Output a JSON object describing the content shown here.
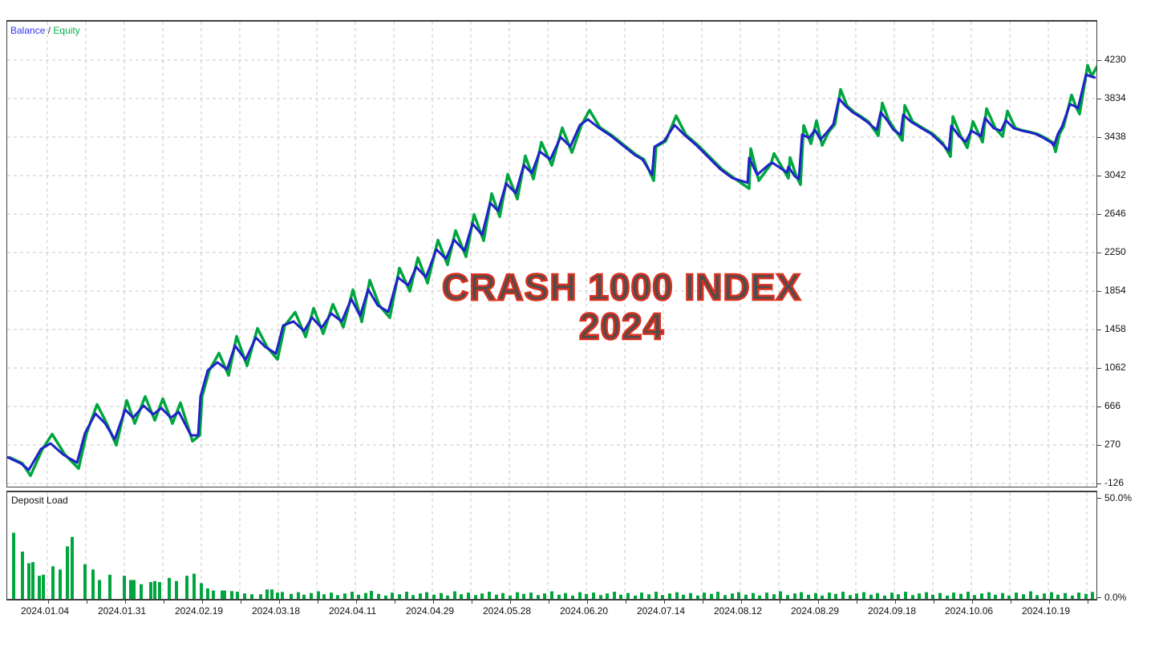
{
  "legend": {
    "balance_label": "Balance",
    "separator": "/",
    "equity_label": "Equity",
    "balance_text_color": "#3434f0",
    "separator_color": "#333333",
    "equity_text_color": "#00b44b"
  },
  "watermark": {
    "line1": "CRASH 1000 INDEX",
    "line2": "2024",
    "fill_color": "#4d4d4d",
    "outline_color": "#d9301f"
  },
  "deposit_panel": {
    "label": "Deposit Load",
    "max_label": "50.0%",
    "min_label": "0.0%"
  },
  "colors": {
    "balance_line": "#2121c8",
    "equity_line": "#00a53e",
    "deposit_bar": "#00a53e",
    "grid": "#c9c9c9",
    "frame": "#3f3f3f",
    "axis_text": "#111111"
  },
  "chart_data": {
    "type": "line",
    "title": "CRASH 1000 INDEX 2024",
    "legend_position": "top-left",
    "grid": true,
    "y_ticks": [
      4230,
      3834,
      3438,
      3042,
      2646,
      2250,
      1854,
      1458,
      1062,
      666,
      270,
      -126
    ],
    "ylim": [
      -126,
      4230
    ],
    "x_ticks": [
      "2024.01.04",
      "2024.01.31",
      "2024.02.19",
      "2024.03.18",
      "2024.04.11",
      "2024.04.29",
      "2024.05.28",
      "2024.06.20",
      "2024.07.14",
      "2024.08.12",
      "2024.08.29",
      "2024.09.18",
      "2024.10.06",
      "2024.10.19"
    ],
    "series": [
      {
        "name": "Balance",
        "points": [
          [
            0,
            146
          ],
          [
            17,
            80
          ],
          [
            27,
            14
          ],
          [
            42,
            228
          ],
          [
            54,
            286
          ],
          [
            70,
            170
          ],
          [
            87,
            88
          ],
          [
            97,
            393
          ],
          [
            110,
            592
          ],
          [
            122,
            493
          ],
          [
            134,
            328
          ],
          [
            147,
            633
          ],
          [
            157,
            551
          ],
          [
            170,
            674
          ],
          [
            182,
            584
          ],
          [
            192,
            650
          ],
          [
            204,
            551
          ],
          [
            214,
            609
          ],
          [
            229,
            369
          ],
          [
            238,
            369
          ],
          [
            241,
            770
          ],
          [
            250,
            1037
          ],
          [
            262,
            1120
          ],
          [
            274,
            1046
          ],
          [
            284,
            1293
          ],
          [
            297,
            1145
          ],
          [
            310,
            1375
          ],
          [
            322,
            1277
          ],
          [
            335,
            1211
          ],
          [
            344,
            1499
          ],
          [
            357,
            1541
          ],
          [
            370,
            1442
          ],
          [
            380,
            1582
          ],
          [
            392,
            1475
          ],
          [
            404,
            1623
          ],
          [
            417,
            1541
          ],
          [
            429,
            1772
          ],
          [
            440,
            1598
          ],
          [
            450,
            1871
          ],
          [
            462,
            1706
          ],
          [
            475,
            1640
          ],
          [
            487,
            1995
          ],
          [
            500,
            1912
          ],
          [
            510,
            2102
          ],
          [
            522,
            1995
          ],
          [
            535,
            2283
          ],
          [
            547,
            2184
          ],
          [
            557,
            2382
          ],
          [
            570,
            2267
          ],
          [
            580,
            2547
          ],
          [
            592,
            2432
          ],
          [
            602,
            2762
          ],
          [
            612,
            2679
          ],
          [
            622,
            2960
          ],
          [
            634,
            2861
          ],
          [
            644,
            3150
          ],
          [
            654,
            3067
          ],
          [
            664,
            3290
          ],
          [
            677,
            3207
          ],
          [
            690,
            3438
          ],
          [
            702,
            3339
          ],
          [
            714,
            3562
          ],
          [
            724,
            3620
          ],
          [
            737,
            3537
          ],
          [
            752,
            3455
          ],
          [
            767,
            3356
          ],
          [
            782,
            3257
          ],
          [
            792,
            3207
          ],
          [
            804,
            3050
          ],
          [
            807,
            3339
          ],
          [
            819,
            3397
          ],
          [
            832,
            3562
          ],
          [
            844,
            3463
          ],
          [
            859,
            3356
          ],
          [
            874,
            3232
          ],
          [
            889,
            3108
          ],
          [
            904,
            3017
          ],
          [
            923,
            2968
          ],
          [
            925,
            3224
          ],
          [
            935,
            3050
          ],
          [
            950,
            3158
          ],
          [
            954,
            3174
          ],
          [
            972,
            3075
          ],
          [
            974,
            3133
          ],
          [
            982,
            3034
          ],
          [
            987,
            3009
          ],
          [
            991,
            3463
          ],
          [
            1000,
            3430
          ],
          [
            1007,
            3512
          ],
          [
            1014,
            3413
          ],
          [
            1022,
            3488
          ],
          [
            1030,
            3570
          ],
          [
            1037,
            3834
          ],
          [
            1045,
            3760
          ],
          [
            1054,
            3694
          ],
          [
            1062,
            3653
          ],
          [
            1072,
            3595
          ],
          [
            1084,
            3512
          ],
          [
            1089,
            3694
          ],
          [
            1097,
            3612
          ],
          [
            1105,
            3512
          ],
          [
            1114,
            3463
          ],
          [
            1117,
            3669
          ],
          [
            1127,
            3595
          ],
          [
            1140,
            3529
          ],
          [
            1152,
            3471
          ],
          [
            1164,
            3380
          ],
          [
            1174,
            3298
          ],
          [
            1177,
            3554
          ],
          [
            1187,
            3446
          ],
          [
            1195,
            3389
          ],
          [
            1202,
            3504
          ],
          [
            1214,
            3446
          ],
          [
            1219,
            3636
          ],
          [
            1230,
            3529
          ],
          [
            1239,
            3504
          ],
          [
            1245,
            3611
          ],
          [
            1255,
            3529
          ],
          [
            1265,
            3504
          ],
          [
            1274,
            3488
          ],
          [
            1282,
            3471
          ],
          [
            1292,
            3430
          ],
          [
            1302,
            3380
          ],
          [
            1305,
            3347
          ],
          [
            1310,
            3471
          ],
          [
            1315,
            3545
          ],
          [
            1325,
            3776
          ],
          [
            1330,
            3760
          ],
          [
            1335,
            3735
          ],
          [
            1345,
            4082
          ],
          [
            1350,
            4065
          ],
          [
            1357,
            4048
          ]
        ]
      },
      {
        "name": "Equity",
        "derivation": "balance with open-position float spikes at local extremes",
        "spike_up": 95,
        "spike_down": 60,
        "end_spike": 120
      }
    ],
    "deposit_load": {
      "type": "bar",
      "ylabel": "Deposit Load",
      "unit": "%",
      "ylim": [
        0,
        50
      ],
      "bars": [
        [
          6,
          31.5
        ],
        [
          17,
          22.5
        ],
        [
          25,
          17
        ],
        [
          30,
          17.5
        ],
        [
          38,
          11
        ],
        [
          43,
          11.5
        ],
        [
          55,
          15.5
        ],
        [
          64,
          14
        ],
        [
          73,
          25
        ],
        [
          79,
          29.5
        ],
        [
          95,
          16.5
        ],
        [
          105,
          14
        ],
        [
          113,
          9
        ],
        [
          126,
          11.5
        ],
        [
          144,
          11
        ],
        [
          152,
          9
        ],
        [
          156,
          9
        ],
        [
          165,
          7
        ],
        [
          177,
          8
        ],
        [
          182,
          8.5
        ],
        [
          188,
          8
        ],
        [
          200,
          10
        ],
        [
          209,
          8.5
        ],
        [
          222,
          11
        ],
        [
          231,
          12
        ],
        [
          240,
          7.5
        ],
        [
          248,
          5
        ],
        [
          255,
          4
        ],
        [
          266,
          4
        ],
        [
          269,
          4
        ],
        [
          278,
          3.7
        ],
        [
          285,
          3.4
        ],
        [
          294,
          2.6
        ],
        [
          303,
          2.2
        ],
        [
          314,
          2.2
        ],
        [
          322,
          4.5
        ],
        [
          328,
          4.5
        ],
        [
          335,
          3
        ],
        [
          341,
          3.3
        ],
        [
          352,
          2.4
        ],
        [
          361,
          3.2
        ],
        [
          368,
          2.0
        ],
        [
          377,
          2.8
        ],
        [
          386,
          3.6
        ],
        [
          393,
          2.2
        ],
        [
          402,
          3.0
        ],
        [
          410,
          1.8
        ],
        [
          419,
          2.6
        ],
        [
          428,
          3.4
        ],
        [
          436,
          2.0
        ],
        [
          445,
          2.8
        ],
        [
          452,
          3.8
        ],
        [
          461,
          2.4
        ],
        [
          470,
          1.6
        ],
        [
          478,
          3.0
        ],
        [
          487,
          2.2
        ],
        [
          496,
          3.4
        ],
        [
          504,
          1.8
        ],
        [
          513,
          2.6
        ],
        [
          521,
          3.2
        ],
        [
          530,
          2.0
        ],
        [
          539,
          2.8
        ],
        [
          547,
          1.6
        ],
        [
          556,
          3.6
        ],
        [
          564,
          2.2
        ],
        [
          573,
          3.0
        ],
        [
          582,
          1.8
        ],
        [
          590,
          2.6
        ],
        [
          599,
          3.4
        ],
        [
          608,
          2.0
        ],
        [
          616,
          2.8
        ],
        [
          625,
          1.6
        ],
        [
          634,
          3.2
        ],
        [
          642,
          2.4
        ],
        [
          651,
          3.0
        ],
        [
          660,
          1.8
        ],
        [
          668,
          2.6
        ],
        [
          677,
          3.6
        ],
        [
          686,
          2.0
        ],
        [
          694,
          2.8
        ],
        [
          703,
          1.6
        ],
        [
          712,
          3.2
        ],
        [
          720,
          2.4
        ],
        [
          729,
          3.0
        ],
        [
          738,
          1.8
        ],
        [
          746,
          2.6
        ],
        [
          755,
          3.4
        ],
        [
          763,
          2.0
        ],
        [
          772,
          2.8
        ],
        [
          781,
          1.6
        ],
        [
          789,
          3.0
        ],
        [
          798,
          2.2
        ],
        [
          807,
          3.4
        ],
        [
          815,
          1.8
        ],
        [
          824,
          2.6
        ],
        [
          833,
          3.2
        ],
        [
          841,
          2.0
        ],
        [
          850,
          2.8
        ],
        [
          859,
          1.6
        ],
        [
          867,
          3.0
        ],
        [
          876,
          2.4
        ],
        [
          884,
          3.4
        ],
        [
          893,
          1.8
        ],
        [
          902,
          2.6
        ],
        [
          910,
          3.2
        ],
        [
          919,
          2.0
        ],
        [
          928,
          2.8
        ],
        [
          936,
          1.6
        ],
        [
          945,
          3.0
        ],
        [
          954,
          2.2
        ],
        [
          962,
          3.6
        ],
        [
          971,
          1.8
        ],
        [
          980,
          2.6
        ],
        [
          988,
          3.2
        ],
        [
          997,
          2.0
        ],
        [
          1006,
          2.8
        ],
        [
          1014,
          1.6
        ],
        [
          1023,
          3.0
        ],
        [
          1031,
          2.4
        ],
        [
          1040,
          3.4
        ],
        [
          1049,
          1.8
        ],
        [
          1057,
          2.6
        ],
        [
          1066,
          3.2
        ],
        [
          1075,
          2.0
        ],
        [
          1083,
          2.8
        ],
        [
          1092,
          1.6
        ],
        [
          1101,
          3.0
        ],
        [
          1109,
          2.2
        ],
        [
          1118,
          3.4
        ],
        [
          1127,
          1.8
        ],
        [
          1135,
          2.6
        ],
        [
          1144,
          3.2
        ],
        [
          1152,
          2.0
        ],
        [
          1161,
          2.8
        ],
        [
          1170,
          1.6
        ],
        [
          1178,
          3.0
        ],
        [
          1187,
          2.4
        ],
        [
          1196,
          3.4
        ],
        [
          1204,
          1.8
        ],
        [
          1213,
          2.6
        ],
        [
          1222,
          3.2
        ],
        [
          1230,
          2.0
        ],
        [
          1239,
          2.8
        ],
        [
          1247,
          1.6
        ],
        [
          1256,
          3.0
        ],
        [
          1265,
          2.2
        ],
        [
          1274,
          3.6
        ],
        [
          1282,
          1.8
        ],
        [
          1291,
          2.6
        ],
        [
          1300,
          3.2
        ],
        [
          1308,
          2.0
        ],
        [
          1317,
          2.8
        ],
        [
          1326,
          1.6
        ],
        [
          1334,
          3.0
        ],
        [
          1343,
          2.4
        ],
        [
          1351,
          3.3
        ]
      ],
      "y_axis_labels": [
        "50.0%",
        "0.0%"
      ]
    }
  }
}
